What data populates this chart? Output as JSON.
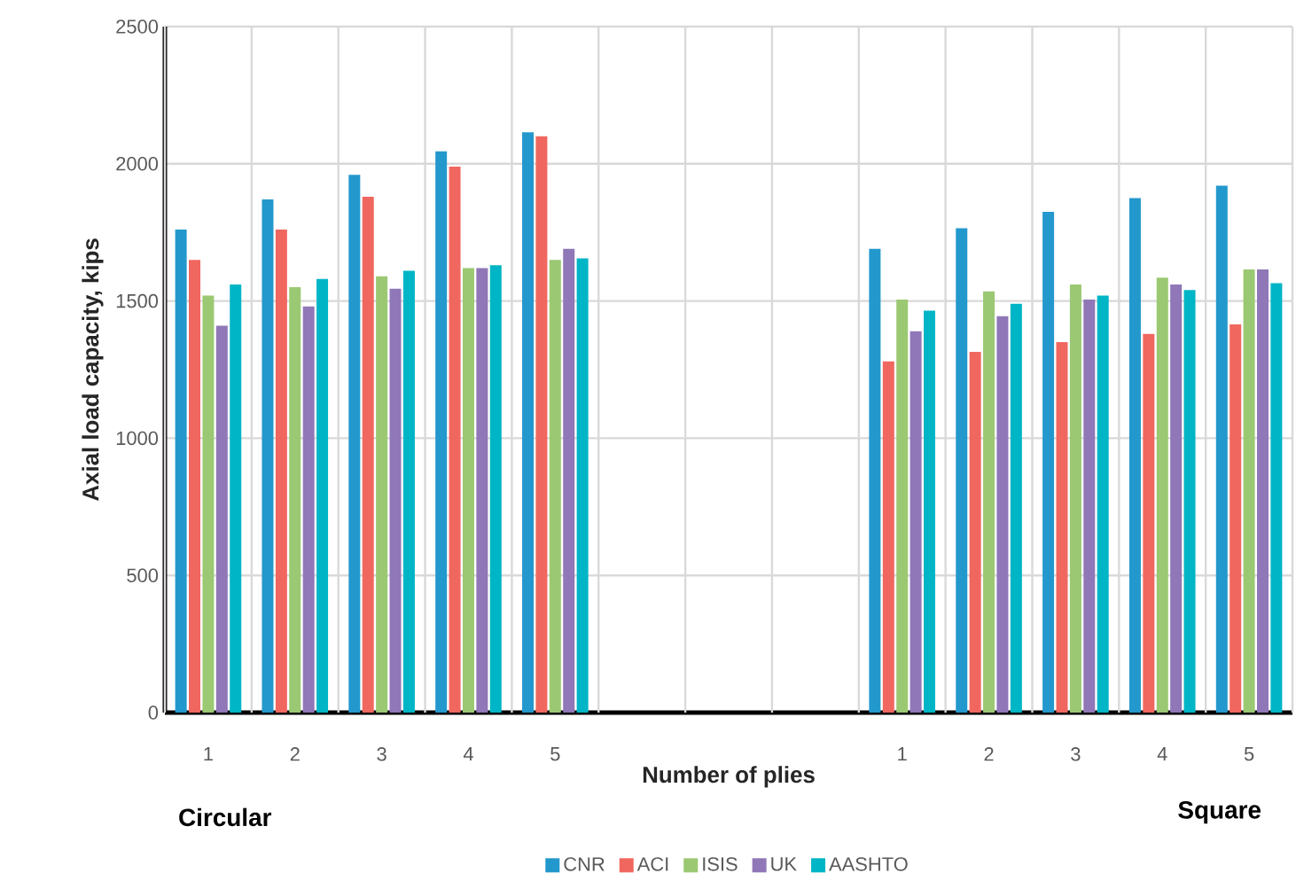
{
  "chart_data": {
    "type": "bar",
    "xlabel": "Number of plies",
    "ylabel": "Axial load capacity, kips",
    "categories": [
      "1",
      "2",
      "3",
      "4",
      "5",
      null,
      null,
      null,
      "1",
      "2",
      "3",
      "4",
      "5"
    ],
    "series": [
      {
        "name": "CNR",
        "color": "#2398cd",
        "values": [
          1760,
          1870,
          1960,
          2045,
          2115,
          null,
          null,
          null,
          1690,
          1765,
          1825,
          1875,
          1920
        ]
      },
      {
        "name": "ACI",
        "color": "#f0675f",
        "values": [
          1650,
          1760,
          1880,
          1990,
          2100,
          null,
          null,
          null,
          1280,
          1315,
          1350,
          1380,
          1415
        ]
      },
      {
        "name": "ISIS",
        "color": "#9bc872",
        "values": [
          1520,
          1550,
          1590,
          1620,
          1650,
          null,
          null,
          null,
          1505,
          1535,
          1560,
          1585,
          1615
        ]
      },
      {
        "name": "UK",
        "color": "#9077b7",
        "values": [
          1410,
          1480,
          1545,
          1620,
          1690,
          null,
          null,
          null,
          1390,
          1445,
          1505,
          1560,
          1615
        ]
      },
      {
        "name": "AASHTO",
        "color": "#00b5c6",
        "values": [
          1560,
          1580,
          1610,
          1630,
          1655,
          null,
          null,
          null,
          1465,
          1490,
          1520,
          1540,
          1565
        ]
      }
    ],
    "ylim": [
      0,
      2500
    ],
    "yticks": [
      0,
      500,
      1000,
      1500,
      2000,
      2500
    ],
    "grid": true,
    "legend": "bottom",
    "annotations": [
      "Circular",
      "Square"
    ]
  }
}
